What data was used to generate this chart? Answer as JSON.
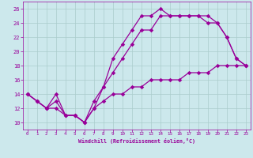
{
  "xlabel": "Windchill (Refroidissement éolien,°C)",
  "background_color": "#cce8ec",
  "grid_color": "#aacccc",
  "line_color": "#990099",
  "xlim": [
    -0.5,
    23.5
  ],
  "ylim": [
    9.0,
    27.0
  ],
  "xticks": [
    0,
    1,
    2,
    3,
    4,
    5,
    6,
    7,
    8,
    9,
    10,
    11,
    12,
    13,
    14,
    15,
    16,
    17,
    18,
    19,
    20,
    21,
    22,
    23
  ],
  "yticks": [
    10,
    12,
    14,
    16,
    18,
    20,
    22,
    24,
    26
  ],
  "line1_x": [
    0,
    1,
    2,
    3,
    4,
    5,
    6,
    7,
    8,
    9,
    10,
    11,
    12,
    13,
    14,
    15,
    16,
    17,
    18,
    19,
    20,
    21,
    22,
    23
  ],
  "line1_y": [
    14,
    13,
    12,
    14,
    11,
    11,
    10,
    13,
    15,
    19,
    21,
    23,
    25,
    25,
    26,
    25,
    25,
    25,
    25,
    24,
    24,
    22,
    19,
    18
  ],
  "line2_x": [
    0,
    1,
    2,
    3,
    4,
    5,
    6,
    7,
    8,
    9,
    10,
    11,
    12,
    13,
    14,
    15,
    16,
    17,
    18,
    19,
    20,
    21,
    22,
    23
  ],
  "line2_y": [
    14,
    13,
    12,
    13,
    11,
    11,
    10,
    12,
    15,
    17,
    19,
    21,
    23,
    23,
    25,
    25,
    25,
    25,
    25,
    25,
    24,
    22,
    19,
    18
  ],
  "line3_x": [
    0,
    1,
    2,
    3,
    4,
    5,
    6,
    7,
    8,
    9,
    10,
    11,
    12,
    13,
    14,
    15,
    16,
    17,
    18,
    19,
    20,
    21,
    22,
    23
  ],
  "line3_y": [
    14,
    13,
    12,
    12,
    11,
    11,
    10,
    12,
    13,
    14,
    14,
    15,
    15,
    16,
    16,
    16,
    16,
    17,
    17,
    17,
    18,
    18,
    18,
    18
  ]
}
